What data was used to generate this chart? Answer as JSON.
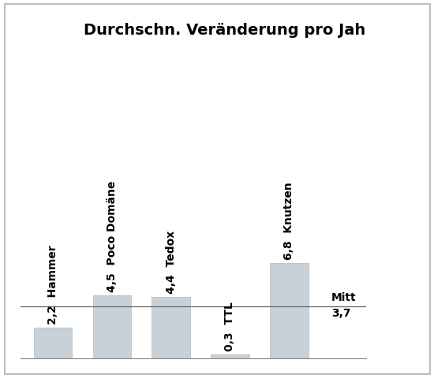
{
  "title": "Durchschn. Veränderung pro Jah",
  "categories": [
    "Hammer",
    "Poco Domäne",
    "Tedox",
    "TTL",
    "Knutzen"
  ],
  "values": [
    2.2,
    4.5,
    4.4,
    0.3,
    6.8
  ],
  "bar_color": "#c8d0d8",
  "bar_edge_color": "#b0bac4",
  "mean_value": 3.7,
  "mean_label": "Mitt",
  "mean_value_label": "3,7",
  "bar_positions": [
    0,
    1,
    2,
    3,
    4
  ],
  "ylim": [
    0,
    22
  ],
  "xlim": [
    -0.55,
    5.3
  ],
  "background_color": "#ffffff",
  "border_color": "#b0b0b0",
  "title_fontsize": 14,
  "label_fontsize": 10,
  "mean_line_color": "#666666"
}
